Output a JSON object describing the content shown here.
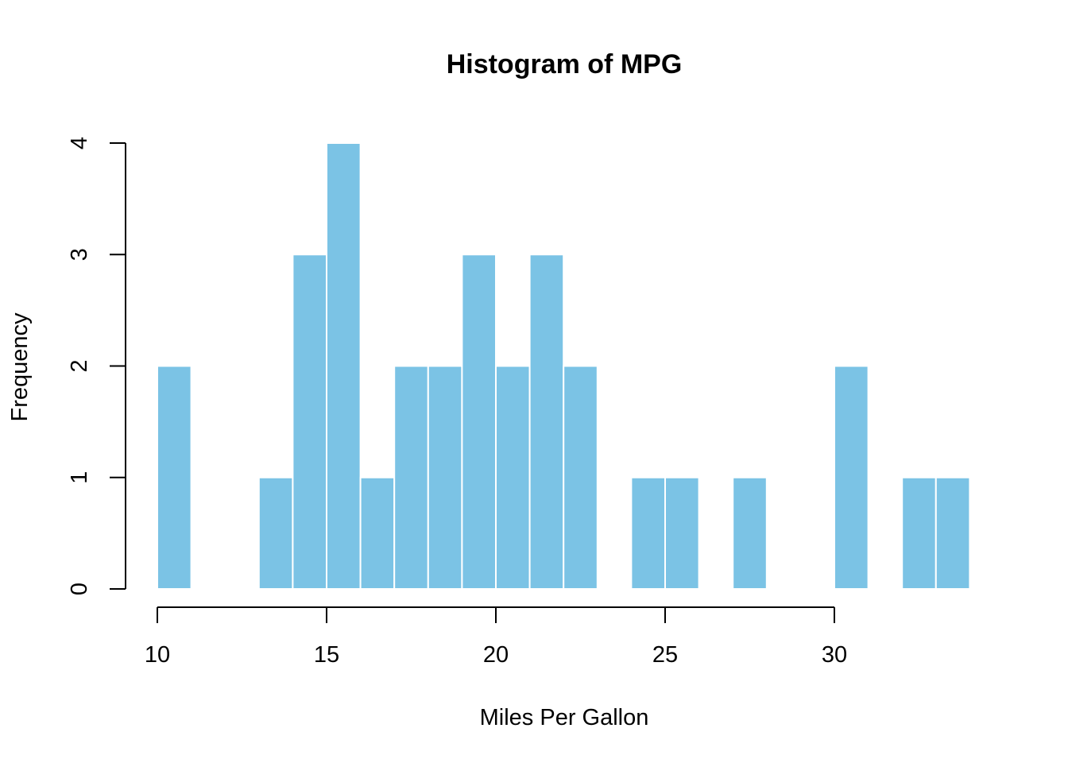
{
  "chart_data": {
    "type": "bar",
    "title": "Histogram of MPG",
    "xlabel": "Miles Per Gallon",
    "ylabel": "Frequency",
    "bin_width": 1,
    "bins": [
      {
        "start": 10,
        "end": 11,
        "count": 2
      },
      {
        "start": 11,
        "end": 12,
        "count": 0
      },
      {
        "start": 12,
        "end": 13,
        "count": 0
      },
      {
        "start": 13,
        "end": 14,
        "count": 1
      },
      {
        "start": 14,
        "end": 15,
        "count": 3
      },
      {
        "start": 15,
        "end": 16,
        "count": 4
      },
      {
        "start": 16,
        "end": 17,
        "count": 1
      },
      {
        "start": 17,
        "end": 18,
        "count": 2
      },
      {
        "start": 18,
        "end": 19,
        "count": 2
      },
      {
        "start": 19,
        "end": 20,
        "count": 3
      },
      {
        "start": 20,
        "end": 21,
        "count": 2
      },
      {
        "start": 21,
        "end": 22,
        "count": 3
      },
      {
        "start": 22,
        "end": 23,
        "count": 2
      },
      {
        "start": 23,
        "end": 24,
        "count": 0
      },
      {
        "start": 24,
        "end": 25,
        "count": 1
      },
      {
        "start": 25,
        "end": 26,
        "count": 1
      },
      {
        "start": 26,
        "end": 27,
        "count": 0
      },
      {
        "start": 27,
        "end": 28,
        "count": 1
      },
      {
        "start": 28,
        "end": 29,
        "count": 0
      },
      {
        "start": 29,
        "end": 30,
        "count": 0
      },
      {
        "start": 30,
        "end": 31,
        "count": 2
      },
      {
        "start": 31,
        "end": 32,
        "count": 0
      },
      {
        "start": 32,
        "end": 33,
        "count": 1
      },
      {
        "start": 33,
        "end": 34,
        "count": 1
      }
    ],
    "xlim": [
      10,
      34
    ],
    "ylim": [
      0,
      4
    ],
    "x_ticks": [
      10,
      15,
      20,
      25,
      30
    ],
    "y_ticks": [
      0,
      1,
      2,
      3,
      4
    ],
    "bar_color": "#7BC3E5",
    "bar_border_color": "#FFFFFF",
    "grid": false,
    "legend": "none"
  }
}
